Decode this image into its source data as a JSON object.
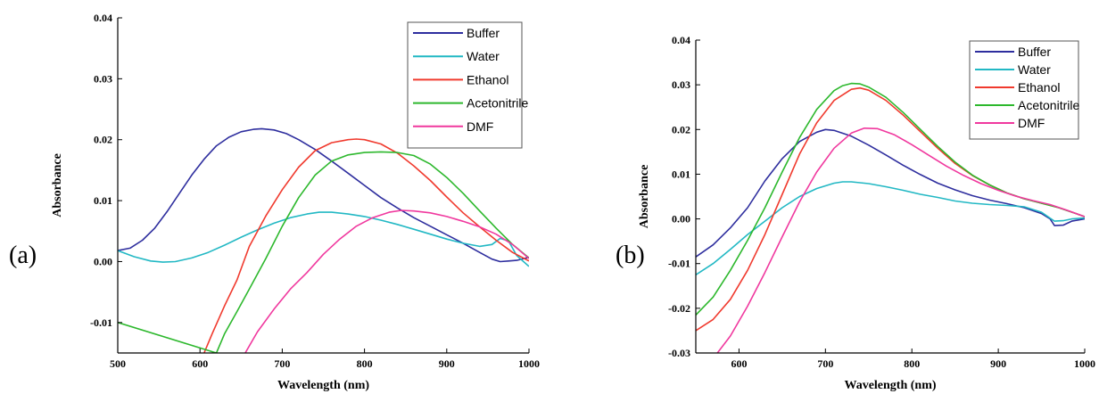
{
  "panels": [
    {
      "label": "(a)"
    },
    {
      "label": "(b)"
    }
  ],
  "colors": {
    "Buffer": "#2e2e9e",
    "Water": "#22b8c4",
    "Ethanol": "#f03a2e",
    "Acetonitrile": "#2db82d",
    "DMF": "#f0389e"
  },
  "chart_data": [
    {
      "type": "line",
      "xlabel": "Wavelength (nm)",
      "ylabel": "Absorbance",
      "xlim": [
        500,
        1000
      ],
      "ylim": [
        -0.015,
        0.04
      ],
      "xticks": [
        500,
        600,
        700,
        800,
        900,
        1000
      ],
      "xtick_labels": [
        "500",
        "600",
        "700",
        "800",
        "900",
        "1000"
      ],
      "yticks": [
        -0.01,
        0.0,
        0.01,
        0.02,
        0.03,
        0.04
      ],
      "ytick_labels": [
        "-0.01",
        "0.00",
        "0.01",
        "0.02",
        "0.03",
        "0.04"
      ],
      "legend_position": "top-right",
      "series": [
        {
          "name": "Buffer",
          "x": [
            500,
            515,
            530,
            545,
            560,
            575,
            590,
            605,
            620,
            635,
            650,
            665,
            675,
            690,
            705,
            720,
            740,
            760,
            780,
            800,
            820,
            840,
            860,
            880,
            900,
            920,
            940,
            955,
            965,
            975,
            985,
            1000
          ],
          "y": [
            0.0018,
            0.0022,
            0.0035,
            0.0055,
            0.0082,
            0.0112,
            0.0142,
            0.0168,
            0.019,
            0.0204,
            0.0213,
            0.0217,
            0.0218,
            0.0216,
            0.021,
            0.02,
            0.0184,
            0.0165,
            0.0145,
            0.0125,
            0.0105,
            0.0088,
            0.0072,
            0.0058,
            0.0044,
            0.003,
            0.0015,
            0.0004,
            0.0,
            0.0001,
            0.0002,
            0.0007
          ]
        },
        {
          "name": "Water",
          "x": [
            500,
            520,
            540,
            555,
            570,
            590,
            610,
            630,
            650,
            670,
            690,
            710,
            730,
            745,
            760,
            780,
            800,
            820,
            840,
            860,
            880,
            900,
            920,
            940,
            955,
            965,
            975,
            985,
            1000
          ],
          "y": [
            0.0018,
            0.0008,
            0.0001,
            -0.0001,
            0.0,
            0.0006,
            0.0015,
            0.0027,
            0.004,
            0.0052,
            0.0063,
            0.0072,
            0.0078,
            0.0081,
            0.0081,
            0.0078,
            0.0074,
            0.0068,
            0.0061,
            0.0053,
            0.0045,
            0.0037,
            0.003,
            0.0025,
            0.0028,
            0.0038,
            0.0034,
            0.001,
            -0.0008
          ]
        },
        {
          "name": "Ethanol",
          "x": [
            605,
            615,
            630,
            645,
            660,
            680,
            700,
            720,
            740,
            760,
            780,
            790,
            800,
            820,
            840,
            860,
            880,
            900,
            920,
            940,
            960,
            980,
            1000
          ],
          "y": [
            -0.015,
            -0.0118,
            -0.0072,
            -0.003,
            0.0025,
            0.0075,
            0.0118,
            0.0155,
            0.0182,
            0.0195,
            0.02,
            0.0201,
            0.02,
            0.0193,
            0.0178,
            0.0157,
            0.0133,
            0.0106,
            0.008,
            0.0057,
            0.0035,
            0.0015,
            0.0001
          ]
        },
        {
          "name": "Acetonitrile",
          "x": [
            500,
            620,
            630,
            645,
            660,
            680,
            700,
            720,
            740,
            760,
            780,
            800,
            820,
            840,
            860,
            880,
            900,
            920,
            940,
            960,
            980,
            1000
          ],
          "y": [
            -0.01,
            -0.015,
            -0.0118,
            -0.0082,
            -0.0045,
            0.0005,
            0.0058,
            0.0105,
            0.0142,
            0.0165,
            0.0175,
            0.0179,
            0.018,
            0.0179,
            0.0174,
            0.016,
            0.0138,
            0.0112,
            0.0083,
            0.0055,
            0.0028,
            0.0006
          ]
        },
        {
          "name": "DMF",
          "x": [
            655,
            670,
            690,
            710,
            730,
            750,
            770,
            790,
            810,
            830,
            845,
            860,
            880,
            900,
            920,
            940,
            960,
            980,
            1000
          ],
          "y": [
            -0.015,
            -0.0115,
            -0.0078,
            -0.0045,
            -0.0018,
            0.0012,
            0.0037,
            0.0058,
            0.0072,
            0.0081,
            0.0084,
            0.0083,
            0.008,
            0.0074,
            0.0066,
            0.0057,
            0.0045,
            0.0028,
            0.0005
          ]
        }
      ]
    },
    {
      "type": "line",
      "xlabel": "Wavelength (nm)",
      "ylabel": "Absorbance",
      "xlim": [
        550,
        1000
      ],
      "ylim": [
        -0.03,
        0.04
      ],
      "xticks": [
        600,
        700,
        800,
        900,
        1000
      ],
      "xtick_labels": [
        "600",
        "700",
        "800",
        "900",
        "1000"
      ],
      "yticks": [
        -0.03,
        -0.02,
        -0.01,
        0.0,
        0.01,
        0.02,
        0.03,
        0.04
      ],
      "ytick_labels": [
        "-0.03",
        "-0.02",
        "-0.01",
        "0.00",
        "0.01",
        "0.02",
        "0.03",
        "0.04"
      ],
      "legend_position": "top-right",
      "series": [
        {
          "name": "Buffer",
          "x": [
            550,
            570,
            590,
            610,
            630,
            650,
            670,
            690,
            700,
            710,
            730,
            750,
            770,
            790,
            810,
            830,
            850,
            870,
            890,
            910,
            930,
            950,
            960,
            965,
            975,
            985,
            1000
          ],
          "y": [
            -0.0085,
            -0.0058,
            -0.002,
            0.0025,
            0.0085,
            0.0135,
            0.0173,
            0.0194,
            0.02,
            0.0198,
            0.0185,
            0.0165,
            0.0143,
            0.012,
            0.0099,
            0.008,
            0.0065,
            0.0052,
            0.0042,
            0.0034,
            0.0025,
            0.0012,
            0.0,
            -0.0015,
            -0.0014,
            -0.0005,
            0.0
          ]
        },
        {
          "name": "Water",
          "x": [
            550,
            570,
            590,
            610,
            630,
            650,
            670,
            690,
            710,
            720,
            730,
            750,
            770,
            790,
            810,
            830,
            850,
            870,
            890,
            910,
            930,
            950,
            965,
            975,
            985,
            1000
          ],
          "y": [
            -0.0125,
            -0.01,
            -0.0068,
            -0.0035,
            -0.0005,
            0.0025,
            0.005,
            0.0068,
            0.008,
            0.0083,
            0.0083,
            0.0079,
            0.0072,
            0.0064,
            0.0055,
            0.0048,
            0.004,
            0.0035,
            0.0032,
            0.003,
            0.0027,
            0.0015,
            -0.0005,
            -0.0004,
            0.0,
            0.0002
          ]
        },
        {
          "name": "Ethanol",
          "x": [
            550,
            570,
            590,
            610,
            630,
            650,
            670,
            690,
            710,
            730,
            740,
            750,
            770,
            790,
            810,
            830,
            850,
            870,
            890,
            910,
            930,
            950,
            970,
            990,
            1000
          ],
          "y": [
            -0.025,
            -0.0225,
            -0.018,
            -0.0115,
            -0.0035,
            0.0055,
            0.0145,
            0.0215,
            0.0265,
            0.029,
            0.0293,
            0.0288,
            0.0265,
            0.0232,
            0.0195,
            0.0158,
            0.0124,
            0.0097,
            0.0076,
            0.0058,
            0.0045,
            0.0035,
            0.0025,
            0.0012,
            0.0005
          ]
        },
        {
          "name": "Acetonitrile",
          "x": [
            550,
            570,
            590,
            610,
            630,
            650,
            670,
            690,
            710,
            720,
            730,
            740,
            750,
            770,
            790,
            810,
            830,
            850,
            870,
            890,
            910,
            930,
            950,
            970,
            990,
            1000
          ],
          "y": [
            -0.0215,
            -0.0175,
            -0.0115,
            -0.0048,
            0.0025,
            0.0105,
            0.0182,
            0.0245,
            0.0287,
            0.0298,
            0.0303,
            0.0302,
            0.0295,
            0.0272,
            0.0238,
            0.02,
            0.0162,
            0.0127,
            0.0098,
            0.0076,
            0.0058,
            0.0045,
            0.0035,
            0.0025,
            0.0012,
            0.0005
          ]
        },
        {
          "name": "DMF",
          "x": [
            575,
            590,
            610,
            630,
            650,
            670,
            690,
            710,
            730,
            745,
            760,
            780,
            800,
            820,
            840,
            860,
            880,
            900,
            920,
            940,
            960,
            980,
            1000
          ],
          "y": [
            -0.03,
            -0.0262,
            -0.0195,
            -0.012,
            -0.004,
            0.0038,
            0.0105,
            0.0158,
            0.0192,
            0.0203,
            0.0202,
            0.0188,
            0.0166,
            0.0142,
            0.0118,
            0.0097,
            0.0079,
            0.0064,
            0.0051,
            0.0041,
            0.0032,
            0.0019,
            0.0005
          ]
        }
      ]
    }
  ]
}
